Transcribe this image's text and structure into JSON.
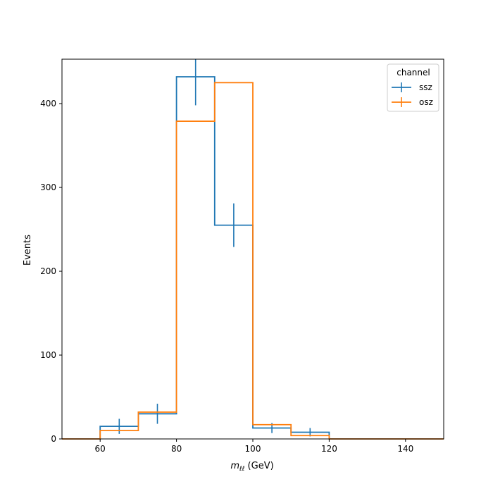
{
  "chart_data": {
    "type": "histogram",
    "title": "",
    "xlabel_main": "m",
    "xlabel_sub": "ℓℓ",
    "xlabel_unit": " (GeV)",
    "ylabel": "Events",
    "xlim": [
      50,
      150
    ],
    "ylim": [
      0,
      453
    ],
    "xticks": [
      60,
      80,
      100,
      120,
      140
    ],
    "yticks": [
      0,
      100,
      200,
      300,
      400
    ],
    "bin_edges": [
      50,
      60,
      70,
      80,
      90,
      100,
      110,
      120,
      130,
      140,
      150
    ],
    "grid": false,
    "legend": {
      "title": "channel",
      "placement": "top-right"
    },
    "series": [
      {
        "name": "ssz",
        "color": "#1f77b4",
        "values": [
          0,
          15,
          30,
          432,
          255,
          13,
          8,
          0,
          0,
          0
        ],
        "errors": [
          0,
          9,
          12,
          34,
          26,
          6,
          5,
          0,
          0,
          0
        ]
      },
      {
        "name": "osz",
        "color": "#ff7f0e",
        "values": [
          0,
          10,
          32,
          379,
          425,
          17,
          4,
          0,
          0,
          0
        ],
        "errors": [
          0,
          0,
          0,
          0,
          0,
          0,
          0,
          0,
          0,
          0
        ]
      }
    ]
  }
}
